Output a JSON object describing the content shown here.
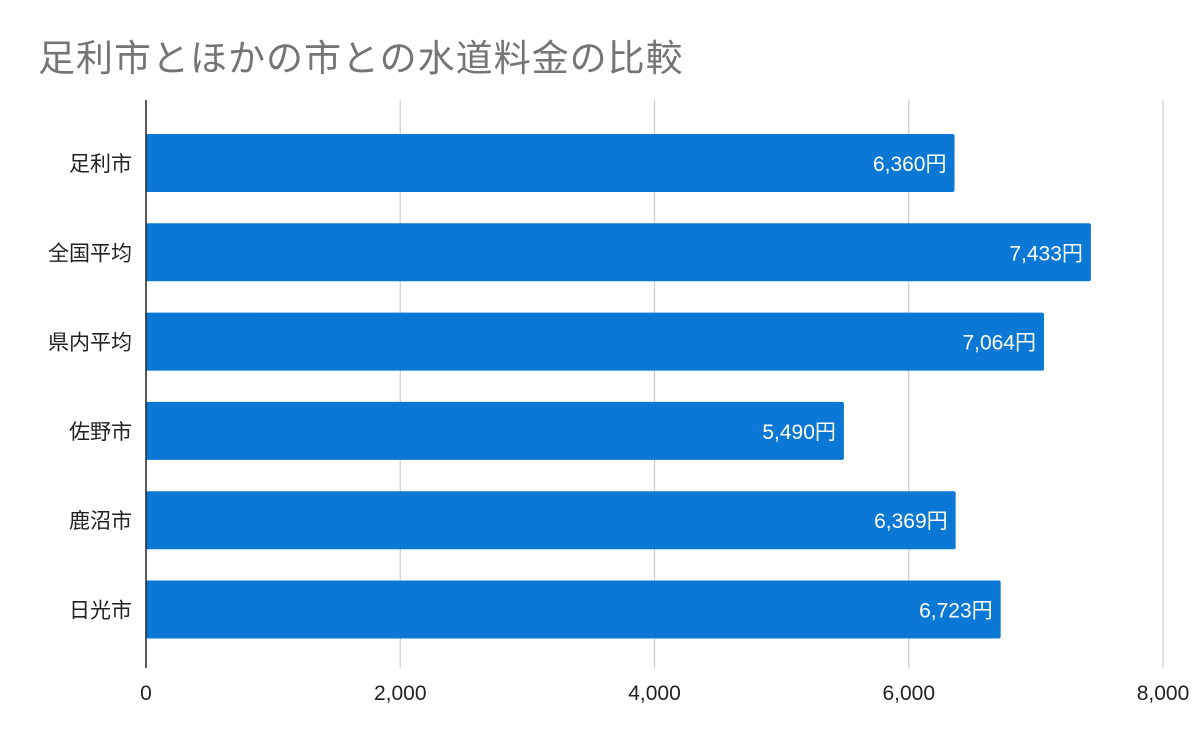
{
  "chart_data": {
    "type": "bar",
    "orientation": "horizontal",
    "title": "足利市とほかの市との水道料金の比較",
    "categories": [
      "足利市",
      "全国平均",
      "県内平均",
      "佐野市",
      "鹿沼市",
      "日光市"
    ],
    "series": [
      {
        "values": [
          6360,
          7433,
          7064,
          5490,
          6369,
          6723
        ]
      }
    ],
    "data_labels": [
      "6,360円",
      "7,433円",
      "7,064円",
      "5,490円",
      "6,369円",
      "6,723円"
    ],
    "xlim": [
      0,
      8000
    ],
    "x_ticks": [
      0,
      2000,
      4000,
      6000,
      8000
    ],
    "x_tick_labels": [
      "0",
      "2,000",
      "4,000",
      "6,000",
      "8,000"
    ],
    "grid": true,
    "legend": "none",
    "colors": {
      "bar": "#0a78d4",
      "grid": "#cccccc",
      "axis": "#222222",
      "title": "#757575"
    }
  }
}
